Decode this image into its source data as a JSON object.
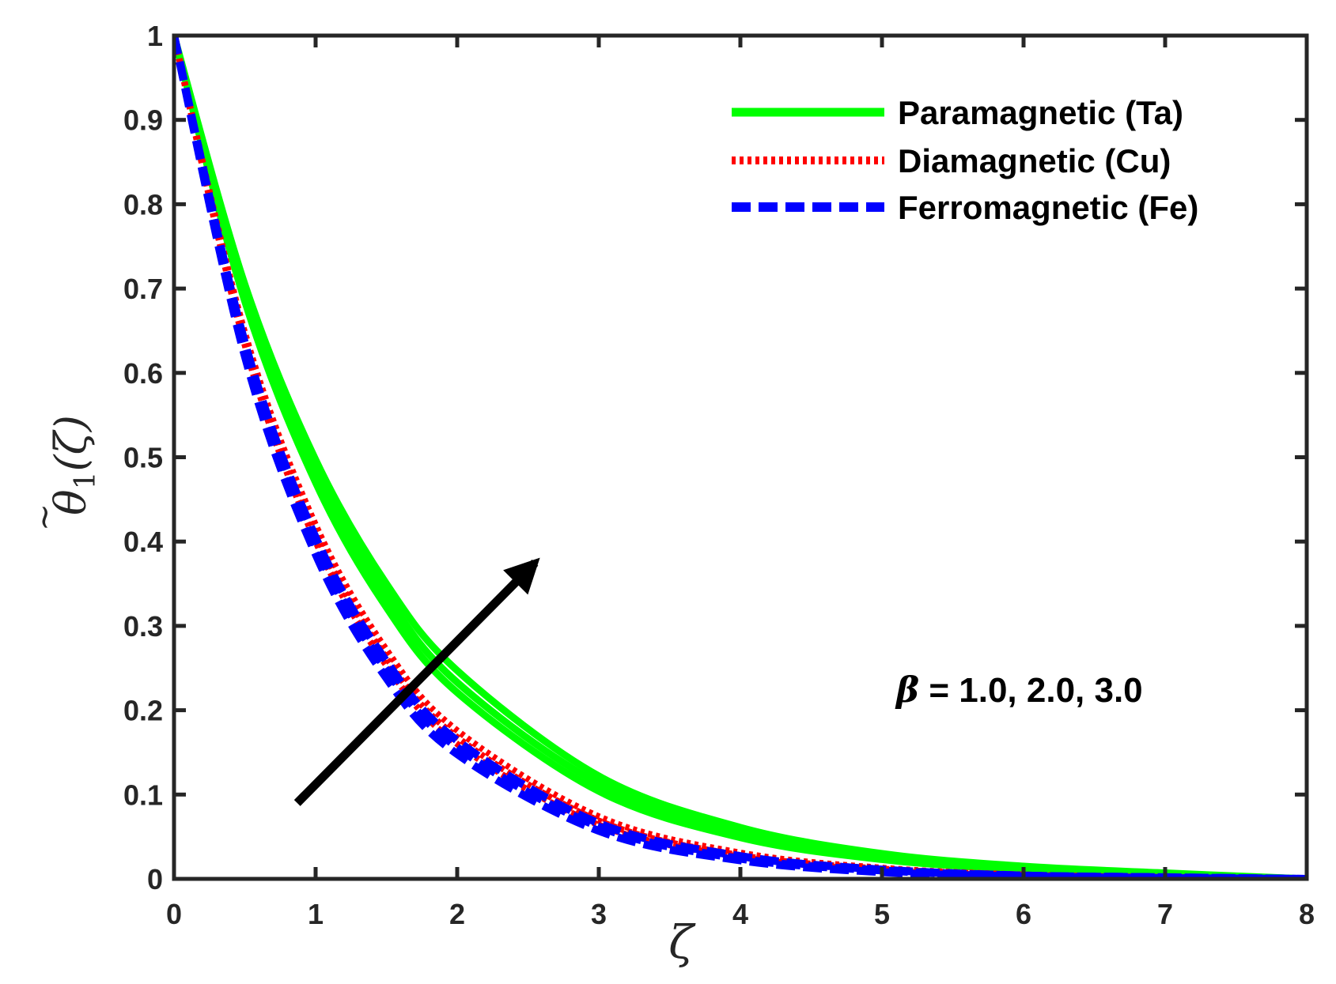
{
  "chart_data": {
    "type": "line",
    "xlabel": "ζ",
    "ylabel": {
      "symbol": "θ",
      "accent": "~",
      "subscript": "1",
      "argument": "(ζ)"
    },
    "xlim": [
      0,
      8
    ],
    "ylim": [
      0,
      1
    ],
    "xticks": [
      "0",
      "1",
      "2",
      "3",
      "4",
      "5",
      "6",
      "7",
      "8"
    ],
    "yticks": [
      "0",
      "0.1",
      "0.2",
      "0.3",
      "0.4",
      "0.5",
      "0.6",
      "0.7",
      "0.8",
      "0.9",
      "1"
    ],
    "grid": false,
    "legend_position": "top-right",
    "series_groups": [
      {
        "label": "Paramagnetic  (Ta)",
        "color": "#00ff00",
        "style": "solid",
        "curves": [
          {
            "beta": "1.0",
            "x": [
              0,
              0.5,
              1,
              1.5,
              2,
              3,
              4,
              5,
              6,
              7,
              8
            ],
            "y": [
              1.0,
              0.685,
              0.47,
              0.322,
              0.221,
              0.104,
              0.049,
              0.023,
              0.011,
              0.005,
              0.0
            ]
          },
          {
            "beta": "2.0",
            "x": [
              0,
              0.5,
              1,
              1.5,
              2,
              3,
              4,
              5,
              6,
              7,
              8
            ],
            "y": [
              1.0,
              0.695,
              0.483,
              0.336,
              0.233,
              0.113,
              0.054,
              0.026,
              0.012,
              0.006,
              0.0
            ]
          },
          {
            "beta": "3.0",
            "x": [
              0,
              0.5,
              1,
              1.5,
              2,
              3,
              4,
              5,
              6,
              7,
              8
            ],
            "y": [
              1.0,
              0.705,
              0.497,
              0.35,
              0.247,
              0.122,
              0.061,
              0.03,
              0.015,
              0.007,
              0.0
            ]
          }
        ]
      },
      {
        "label": "Diamagnetic   (Cu)",
        "color": "#ff0000",
        "style": "dotted",
        "curves": [
          {
            "beta": "1.0",
            "x": [
              0,
              0.5,
              1,
              1.5,
              2,
              3,
              4,
              5,
              6,
              7,
              8
            ],
            "y": [
              1.0,
              0.633,
              0.4,
              0.253,
              0.16,
              0.064,
              0.026,
              0.01,
              0.004,
              0.002,
              0.0
            ]
          },
          {
            "beta": "2.0",
            "x": [
              0,
              0.5,
              1,
              1.5,
              2,
              3,
              4,
              5,
              6,
              7,
              8
            ],
            "y": [
              1.0,
              0.64,
              0.41,
              0.262,
              0.168,
              0.069,
              0.028,
              0.012,
              0.005,
              0.002,
              0.0
            ]
          },
          {
            "beta": "3.0",
            "x": [
              0,
              0.5,
              1,
              1.5,
              2,
              3,
              4,
              5,
              6,
              7,
              8
            ],
            "y": [
              1.0,
              0.648,
              0.42,
              0.272,
              0.176,
              0.074,
              0.031,
              0.013,
              0.005,
              0.002,
              0.0
            ]
          }
        ]
      },
      {
        "label": "Ferromagnetic (Fe)",
        "color": "#0000ff",
        "style": "dashed",
        "curves": [
          {
            "beta": "1.0",
            "x": [
              0,
              0.5,
              1,
              1.5,
              2,
              3,
              4,
              5,
              6,
              7,
              8
            ],
            "y": [
              1.0,
              0.62,
              0.385,
              0.238,
              0.148,
              0.057,
              0.022,
              0.008,
              0.003,
              0.001,
              0.0
            ]
          },
          {
            "beta": "2.0",
            "x": [
              0,
              0.5,
              1,
              1.5,
              2,
              3,
              4,
              5,
              6,
              7,
              8
            ],
            "y": [
              1.0,
              0.628,
              0.395,
              0.248,
              0.156,
              0.062,
              0.024,
              0.01,
              0.004,
              0.002,
              0.0
            ]
          },
          {
            "beta": "3.0",
            "x": [
              0,
              0.5,
              1,
              1.5,
              2,
              3,
              4,
              5,
              6,
              7,
              8
            ],
            "y": [
              1.0,
              0.636,
              0.405,
              0.258,
              0.164,
              0.066,
              0.027,
              0.011,
              0.004,
              0.002,
              0.0
            ]
          }
        ]
      }
    ],
    "annotations": [
      {
        "kind": "arrow",
        "meaning": "increasing beta",
        "from": {
          "x": 0.87,
          "y": 0.09
        },
        "to": {
          "x": 2.55,
          "y": 0.375
        },
        "color": "#000000"
      },
      {
        "kind": "text",
        "symbol": "β",
        "text": " = 1.0, 2.0, 3.0",
        "at": {
          "x": 5.1,
          "y": 0.21
        }
      }
    ],
    "colors": {
      "axes": "#262626",
      "arrow": "#000000",
      "background": "#ffffff"
    }
  }
}
